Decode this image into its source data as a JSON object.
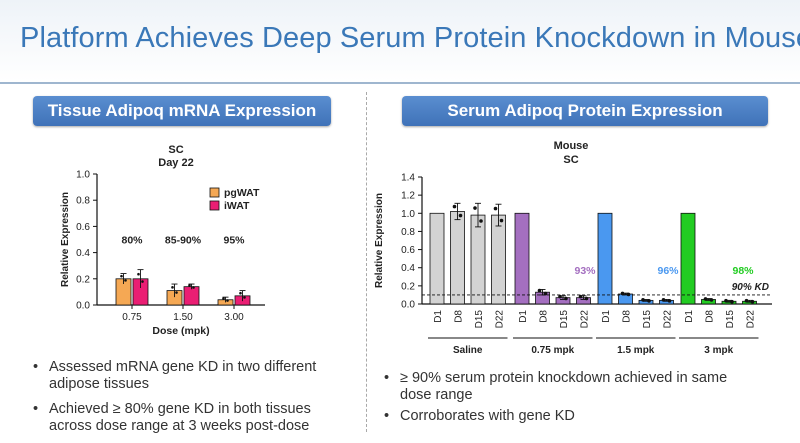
{
  "title": "Platform Achieves Deep Serum Protein Knockdown in Mouse",
  "left_panel": {
    "header": "Tissue Adipoq mRNA Expression",
    "bullets": [
      [
        "Assessed mRNA gene KD in two different",
        "adipose tissues"
      ],
      [
        "Achieved ≥ 80% gene KD in both tissues",
        "across dose range at 3 weeks post-dose"
      ]
    ]
  },
  "right_panel": {
    "header": "Serum Adipoq Protein Expression",
    "bullets": [
      [
        "≥ 90% serum protein knockdown achieved in same",
        "dose range"
      ],
      [
        "Corroborates with gene KD"
      ]
    ]
  },
  "colors": {
    "title": "#3a78b8",
    "pgWAT": "#f5a854",
    "iWAT": "#ea1e73",
    "saline": "#d3d3d3",
    "mpk075": "#a46fc0",
    "mpk15": "#4a98f0",
    "mpk3": "#22cc22"
  },
  "chart_data": [
    {
      "type": "bar",
      "title": "SC",
      "subtitle": "Day 22",
      "xlabel": "Dose (mpk)",
      "ylabel": "Relative Expression",
      "categories": [
        "0.75",
        "1.50",
        "3.00"
      ],
      "ylim": [
        0,
        1.0
      ],
      "yticks": [
        "0.0",
        "0.2",
        "0.4",
        "0.6",
        "0.8",
        "1.0"
      ],
      "series": [
        {
          "name": "pgWAT",
          "values": [
            0.2,
            0.11,
            0.04
          ],
          "errors": [
            0.04,
            0.05,
            0.02
          ]
        },
        {
          "name": "iWAT",
          "values": [
            0.2,
            0.14,
            0.07
          ],
          "errors": [
            0.07,
            0.02,
            0.04
          ]
        }
      ],
      "annotations": [
        "80%",
        "85-90%",
        "95%"
      ]
    },
    {
      "type": "bar",
      "title": "Mouse",
      "subtitle": "SC",
      "ylabel": "Relative Expression",
      "ylim": [
        0,
        1.4
      ],
      "yticks": [
        "0.0",
        "0.2",
        "0.4",
        "0.6",
        "0.8",
        "1.0",
        "1.2",
        "1.4"
      ],
      "groups": [
        {
          "name": "Saline",
          "categories": [
            "D1",
            "D8",
            "D15",
            "D22"
          ],
          "values": [
            1.0,
            1.02,
            0.98,
            0.98
          ],
          "errors": [
            0,
            0.09,
            0.13,
            0.12
          ]
        },
        {
          "name": "0.75 mpk",
          "categories": [
            "D1",
            "D8",
            "D15",
            "D22"
          ],
          "values": [
            1.0,
            0.13,
            0.07,
            0.07
          ],
          "errors": [
            0,
            0.03,
            0.02,
            0.02
          ],
          "annotation": "93%"
        },
        {
          "name": "1.5 mpk",
          "categories": [
            "D1",
            "D8",
            "D15",
            "D22"
          ],
          "values": [
            1.0,
            0.11,
            0.04,
            0.04
          ],
          "errors": [
            0,
            0.01,
            0.01,
            0.01
          ],
          "annotation": "96%"
        },
        {
          "name": "3 mpk",
          "categories": [
            "D1",
            "D8",
            "D15",
            "D22"
          ],
          "values": [
            1.0,
            0.05,
            0.03,
            0.03
          ],
          "errors": [
            0,
            0.01,
            0.01,
            0.01
          ],
          "annotation": "98%"
        }
      ],
      "reference_line": {
        "value": 0.1,
        "label": "90% KD"
      }
    }
  ]
}
